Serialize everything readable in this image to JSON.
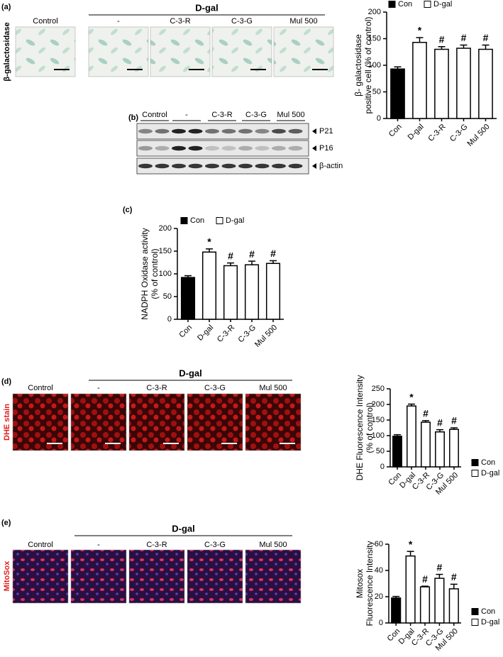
{
  "figure": {
    "a": {
      "label": "(a)",
      "row_label": "β-galactosidase",
      "group": "D-gal",
      "columns": [
        "Control",
        "-",
        "C-3-R",
        "C-3-G",
        "Mul 500"
      ]
    },
    "b": {
      "label": "(b)",
      "columns": [
        "Control",
        "-",
        "C-3-R",
        "C-3-G",
        "Mul 500"
      ],
      "bands": [
        "P21",
        "P16",
        "β-actin"
      ]
    },
    "c": {
      "label": "(c)"
    },
    "d": {
      "label": "(d)",
      "row_label": "DHE stain",
      "group": "D-gal",
      "columns": [
        "Control",
        "-",
        "C-3-R",
        "C-3-G",
        "Mul 500"
      ]
    },
    "e": {
      "label": "(e)",
      "row_label": "MitoSox",
      "group": "D-gal",
      "columns": [
        "Control",
        "-",
        "C-3-R",
        "C-3-G",
        "Mul 500"
      ]
    }
  },
  "chart_data": [
    {
      "type": "bar",
      "ylabel": [
        "β- galactosidase",
        "positive cell (% of control)"
      ],
      "categories": [
        "Con",
        "D-gal",
        "C-3-R",
        "C-3-G",
        "Mul 500"
      ],
      "values": [
        93,
        143,
        130,
        132,
        130
      ],
      "errors": [
        4,
        9,
        5,
        6,
        8
      ],
      "significance": [
        null,
        "*",
        "#",
        "#",
        "#"
      ],
      "colors": [
        "#000000",
        "#ffffff",
        "#ffffff",
        "#ffffff",
        "#ffffff"
      ],
      "legend": [
        {
          "name": "Con",
          "color": "#000000"
        },
        {
          "name": "D-gal",
          "color": "#ffffff"
        }
      ],
      "legend_position": "top",
      "ylim": [
        0,
        200
      ],
      "yticks": [
        0,
        50,
        100,
        150,
        200
      ]
    },
    {
      "type": "bar",
      "ylabel": [
        "NADPH Oxidase activity",
        "(% of control)"
      ],
      "categories": [
        "Con",
        "D-gal",
        "C-3-R",
        "C-3-G",
        "Mul 500"
      ],
      "values": [
        92,
        148,
        118,
        120,
        123
      ],
      "errors": [
        4,
        7,
        6,
        8,
        6
      ],
      "significance": [
        null,
        "*",
        "#",
        "#",
        "#"
      ],
      "colors": [
        "#000000",
        "#ffffff",
        "#ffffff",
        "#ffffff",
        "#ffffff"
      ],
      "legend": [
        {
          "name": "Con",
          "color": "#000000"
        },
        {
          "name": "D-gal",
          "color": "#ffffff"
        }
      ],
      "legend_position": "top",
      "ylim": [
        0,
        200
      ],
      "yticks": [
        0,
        50,
        100,
        150,
        200
      ]
    },
    {
      "type": "bar",
      "ylabel": [
        "DHE Fluorescence Intensity",
        "(% of control)"
      ],
      "categories": [
        "Con",
        "D-gal",
        "C-3-R",
        "C-3-G",
        "Mul 500"
      ],
      "values": [
        98,
        195,
        143,
        112,
        120
      ],
      "errors": [
        5,
        6,
        5,
        7,
        5
      ],
      "significance": [
        null,
        "*",
        "#",
        "#",
        "#"
      ],
      "colors": [
        "#000000",
        "#ffffff",
        "#ffffff",
        "#ffffff",
        "#ffffff"
      ],
      "legend": [
        {
          "name": "Con",
          "color": "#000000"
        },
        {
          "name": "D-gal",
          "color": "#ffffff"
        }
      ],
      "legend_position": "right",
      "ylim": [
        0,
        250
      ],
      "yticks": [
        0,
        50,
        100,
        150,
        200,
        250
      ]
    },
    {
      "type": "bar",
      "ylabel": [
        "Mitosox",
        "Fluorescence Intensity"
      ],
      "categories": [
        "Con",
        "D-gal",
        "C-3-R",
        "C-3-G",
        "Mul 500"
      ],
      "values": [
        19,
        51,
        27.5,
        34,
        26
      ],
      "errors": [
        1.2,
        3.5,
        0.5,
        3,
        3.5
      ],
      "significance": [
        null,
        "*",
        "#",
        "#",
        "#"
      ],
      "colors": [
        "#000000",
        "#ffffff",
        "#ffffff",
        "#ffffff",
        "#ffffff"
      ],
      "legend": [
        {
          "name": "Con",
          "color": "#000000"
        },
        {
          "name": "D-gal",
          "color": "#ffffff"
        }
      ],
      "legend_position": "right",
      "ylim": [
        0,
        60
      ],
      "yticks": [
        0,
        20,
        40,
        60
      ]
    }
  ]
}
